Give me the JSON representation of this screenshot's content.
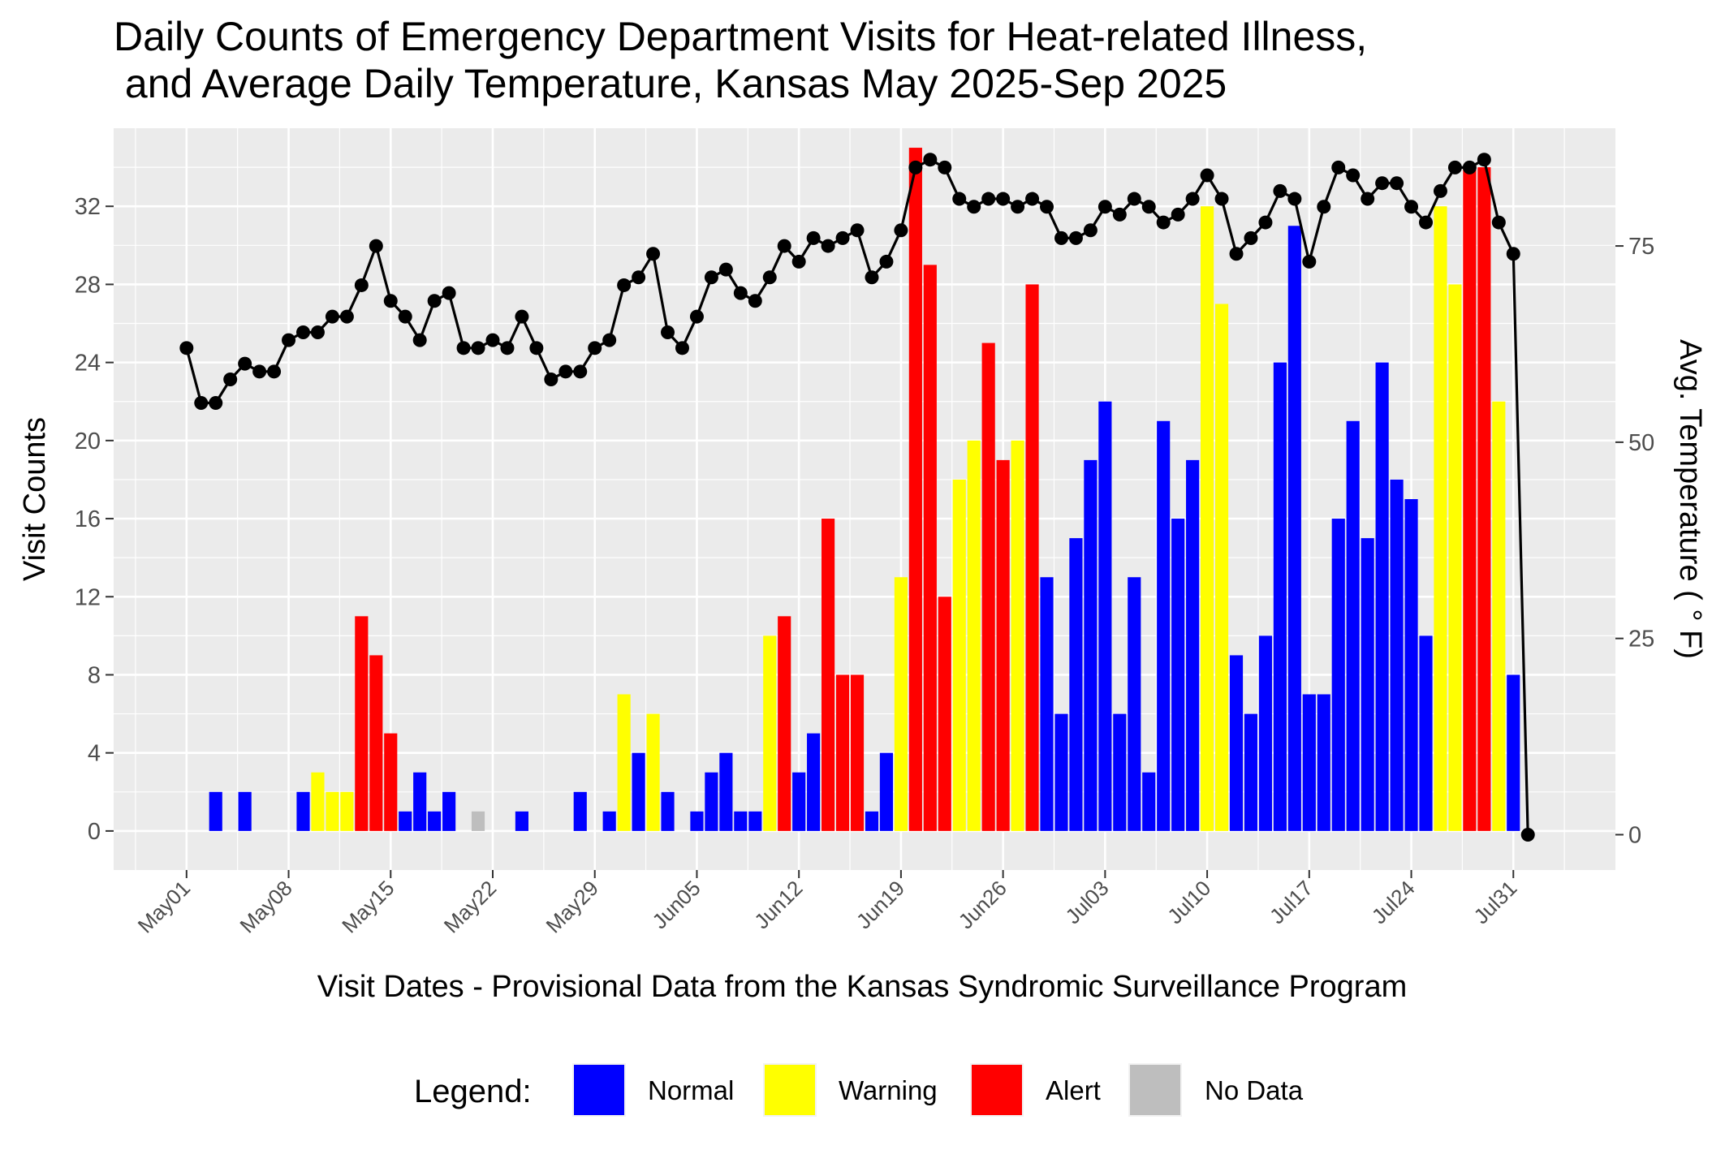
{
  "chart_data": {
    "type": "bar",
    "title": [
      "Daily Counts of Emergency Department Visits for Heat-related Illness,",
      " and Average Daily Temperature, Kansas May 2025-Sep 2025"
    ],
    "xlabel": "Visit Dates - Provisional Data from the Kansas Syndromic Surveillance Program",
    "ylabel": "Visit Counts",
    "y2label": "Avg. Temperature ( ° F)",
    "x_start": "2025-05-01",
    "x_range": [
      "2025-04-26",
      "2025-08-07"
    ],
    "x_ticks": [
      "May01",
      "May08",
      "May15",
      "May22",
      "May29",
      "Jun05",
      "Jun12",
      "Jun19",
      "Jun26",
      "Jul03",
      "Jul10",
      "Jul17",
      "Jul24",
      "Jul31"
    ],
    "ylim": [
      -2,
      36
    ],
    "y_ticks": [
      0,
      4,
      8,
      12,
      16,
      20,
      24,
      28,
      32
    ],
    "y2lim": [
      -4.5,
      90
    ],
    "y2_ticks": [
      0,
      25,
      50,
      75
    ],
    "grid": true,
    "legend_title": "Legend:",
    "legend_position": "bottom",
    "legend": [
      {
        "key": "N",
        "label": "Normal",
        "color": "#0000ff"
      },
      {
        "key": "W",
        "label": "Warning",
        "color": "#ffff00"
      },
      {
        "key": "A",
        "label": "Alert",
        "color": "#ff0000"
      },
      {
        "key": "X",
        "label": "No Data",
        "color": "#bebebe"
      }
    ],
    "bars": [
      {
        "date": "2025-05-03",
        "count": 2,
        "status": "N"
      },
      {
        "date": "2025-05-05",
        "count": 2,
        "status": "N"
      },
      {
        "date": "2025-05-09",
        "count": 2,
        "status": "N"
      },
      {
        "date": "2025-05-10",
        "count": 3,
        "status": "W"
      },
      {
        "date": "2025-05-11",
        "count": 2,
        "status": "W"
      },
      {
        "date": "2025-05-12",
        "count": 2,
        "status": "W"
      },
      {
        "date": "2025-05-13",
        "count": 11,
        "status": "A"
      },
      {
        "date": "2025-05-14",
        "count": 9,
        "status": "A"
      },
      {
        "date": "2025-05-15",
        "count": 5,
        "status": "A"
      },
      {
        "date": "2025-05-16",
        "count": 1,
        "status": "N"
      },
      {
        "date": "2025-05-17",
        "count": 3,
        "status": "N"
      },
      {
        "date": "2025-05-18",
        "count": 1,
        "status": "N"
      },
      {
        "date": "2025-05-19",
        "count": 2,
        "status": "N"
      },
      {
        "date": "2025-05-21",
        "count": 1,
        "status": "X"
      },
      {
        "date": "2025-05-24",
        "count": 1,
        "status": "N"
      },
      {
        "date": "2025-05-28",
        "count": 2,
        "status": "N"
      },
      {
        "date": "2025-05-30",
        "count": 1,
        "status": "N"
      },
      {
        "date": "2025-05-31",
        "count": 7,
        "status": "W"
      },
      {
        "date": "2025-06-01",
        "count": 4,
        "status": "N"
      },
      {
        "date": "2025-06-02",
        "count": 6,
        "status": "W"
      },
      {
        "date": "2025-06-03",
        "count": 2,
        "status": "N"
      },
      {
        "date": "2025-06-05",
        "count": 1,
        "status": "N"
      },
      {
        "date": "2025-06-06",
        "count": 3,
        "status": "N"
      },
      {
        "date": "2025-06-07",
        "count": 4,
        "status": "N"
      },
      {
        "date": "2025-06-08",
        "count": 1,
        "status": "N"
      },
      {
        "date": "2025-06-09",
        "count": 1,
        "status": "N"
      },
      {
        "date": "2025-06-10",
        "count": 10,
        "status": "W"
      },
      {
        "date": "2025-06-11",
        "count": 11,
        "status": "A"
      },
      {
        "date": "2025-06-12",
        "count": 3,
        "status": "N"
      },
      {
        "date": "2025-06-13",
        "count": 5,
        "status": "N"
      },
      {
        "date": "2025-06-14",
        "count": 16,
        "status": "A"
      },
      {
        "date": "2025-06-15",
        "count": 8,
        "status": "A"
      },
      {
        "date": "2025-06-16",
        "count": 8,
        "status": "A"
      },
      {
        "date": "2025-06-17",
        "count": 1,
        "status": "N"
      },
      {
        "date": "2025-06-18",
        "count": 4,
        "status": "N"
      },
      {
        "date": "2025-06-19",
        "count": 13,
        "status": "W"
      },
      {
        "date": "2025-06-20",
        "count": 35,
        "status": "A"
      },
      {
        "date": "2025-06-21",
        "count": 29,
        "status": "A"
      },
      {
        "date": "2025-06-22",
        "count": 12,
        "status": "A"
      },
      {
        "date": "2025-06-23",
        "count": 18,
        "status": "W"
      },
      {
        "date": "2025-06-24",
        "count": 20,
        "status": "W"
      },
      {
        "date": "2025-06-25",
        "count": 25,
        "status": "A"
      },
      {
        "date": "2025-06-26",
        "count": 19,
        "status": "A"
      },
      {
        "date": "2025-06-27",
        "count": 20,
        "status": "W"
      },
      {
        "date": "2025-06-28",
        "count": 28,
        "status": "A"
      },
      {
        "date": "2025-06-29",
        "count": 13,
        "status": "N"
      },
      {
        "date": "2025-06-30",
        "count": 6,
        "status": "N"
      },
      {
        "date": "2025-07-01",
        "count": 15,
        "status": "N"
      },
      {
        "date": "2025-07-02",
        "count": 19,
        "status": "N"
      },
      {
        "date": "2025-07-03",
        "count": 22,
        "status": "N"
      },
      {
        "date": "2025-07-04",
        "count": 6,
        "status": "N"
      },
      {
        "date": "2025-07-05",
        "count": 13,
        "status": "N"
      },
      {
        "date": "2025-07-06",
        "count": 3,
        "status": "N"
      },
      {
        "date": "2025-07-07",
        "count": 21,
        "status": "N"
      },
      {
        "date": "2025-07-08",
        "count": 16,
        "status": "N"
      },
      {
        "date": "2025-07-09",
        "count": 19,
        "status": "N"
      },
      {
        "date": "2025-07-10",
        "count": 32,
        "status": "W"
      },
      {
        "date": "2025-07-11",
        "count": 27,
        "status": "W"
      },
      {
        "date": "2025-07-12",
        "count": 9,
        "status": "N"
      },
      {
        "date": "2025-07-13",
        "count": 6,
        "status": "N"
      },
      {
        "date": "2025-07-14",
        "count": 10,
        "status": "N"
      },
      {
        "date": "2025-07-15",
        "count": 24,
        "status": "N"
      },
      {
        "date": "2025-07-16",
        "count": 31,
        "status": "N"
      },
      {
        "date": "2025-07-17",
        "count": 7,
        "status": "N"
      },
      {
        "date": "2025-07-18",
        "count": 7,
        "status": "N"
      },
      {
        "date": "2025-07-19",
        "count": 16,
        "status": "N"
      },
      {
        "date": "2025-07-20",
        "count": 21,
        "status": "N"
      },
      {
        "date": "2025-07-21",
        "count": 15,
        "status": "N"
      },
      {
        "date": "2025-07-22",
        "count": 24,
        "status": "N"
      },
      {
        "date": "2025-07-23",
        "count": 18,
        "status": "N"
      },
      {
        "date": "2025-07-24",
        "count": 17,
        "status": "N"
      },
      {
        "date": "2025-07-25",
        "count": 10,
        "status": "N"
      },
      {
        "date": "2025-07-26",
        "count": 32,
        "status": "W"
      },
      {
        "date": "2025-07-27",
        "count": 28,
        "status": "W"
      },
      {
        "date": "2025-07-28",
        "count": 34,
        "status": "A"
      },
      {
        "date": "2025-07-29",
        "count": 34,
        "status": "A"
      },
      {
        "date": "2025-07-30",
        "count": 22,
        "status": "W"
      },
      {
        "date": "2025-07-31",
        "count": 8,
        "status": "N"
      }
    ],
    "temperature": [
      {
        "date": "2025-05-01",
        "temp": 62
      },
      {
        "date": "2025-05-02",
        "temp": 55
      },
      {
        "date": "2025-05-03",
        "temp": 55
      },
      {
        "date": "2025-05-04",
        "temp": 58
      },
      {
        "date": "2025-05-05",
        "temp": 60
      },
      {
        "date": "2025-05-06",
        "temp": 59
      },
      {
        "date": "2025-05-07",
        "temp": 59
      },
      {
        "date": "2025-05-08",
        "temp": 63
      },
      {
        "date": "2025-05-09",
        "temp": 64
      },
      {
        "date": "2025-05-10",
        "temp": 64
      },
      {
        "date": "2025-05-11",
        "temp": 66
      },
      {
        "date": "2025-05-12",
        "temp": 66
      },
      {
        "date": "2025-05-13",
        "temp": 70
      },
      {
        "date": "2025-05-14",
        "temp": 75
      },
      {
        "date": "2025-05-15",
        "temp": 68
      },
      {
        "date": "2025-05-16",
        "temp": 66
      },
      {
        "date": "2025-05-17",
        "temp": 63
      },
      {
        "date": "2025-05-18",
        "temp": 68
      },
      {
        "date": "2025-05-19",
        "temp": 69
      },
      {
        "date": "2025-05-20",
        "temp": 62
      },
      {
        "date": "2025-05-21",
        "temp": 62
      },
      {
        "date": "2025-05-22",
        "temp": 63
      },
      {
        "date": "2025-05-23",
        "temp": 62
      },
      {
        "date": "2025-05-24",
        "temp": 66
      },
      {
        "date": "2025-05-25",
        "temp": 62
      },
      {
        "date": "2025-05-26",
        "temp": 58
      },
      {
        "date": "2025-05-27",
        "temp": 59
      },
      {
        "date": "2025-05-28",
        "temp": 59
      },
      {
        "date": "2025-05-29",
        "temp": 62
      },
      {
        "date": "2025-05-30",
        "temp": 63
      },
      {
        "date": "2025-05-31",
        "temp": 70
      },
      {
        "date": "2025-06-01",
        "temp": 71
      },
      {
        "date": "2025-06-02",
        "temp": 74
      },
      {
        "date": "2025-06-03",
        "temp": 64
      },
      {
        "date": "2025-06-04",
        "temp": 62
      },
      {
        "date": "2025-06-05",
        "temp": 66
      },
      {
        "date": "2025-06-06",
        "temp": 71
      },
      {
        "date": "2025-06-07",
        "temp": 72
      },
      {
        "date": "2025-06-08",
        "temp": 69
      },
      {
        "date": "2025-06-09",
        "temp": 68
      },
      {
        "date": "2025-06-10",
        "temp": 71
      },
      {
        "date": "2025-06-11",
        "temp": 75
      },
      {
        "date": "2025-06-12",
        "temp": 73
      },
      {
        "date": "2025-06-13",
        "temp": 76
      },
      {
        "date": "2025-06-14",
        "temp": 75
      },
      {
        "date": "2025-06-15",
        "temp": 76
      },
      {
        "date": "2025-06-16",
        "temp": 77
      },
      {
        "date": "2025-06-17",
        "temp": 71
      },
      {
        "date": "2025-06-18",
        "temp": 73
      },
      {
        "date": "2025-06-19",
        "temp": 77
      },
      {
        "date": "2025-06-20",
        "temp": 85
      },
      {
        "date": "2025-06-21",
        "temp": 86
      },
      {
        "date": "2025-06-22",
        "temp": 85
      },
      {
        "date": "2025-06-23",
        "temp": 81
      },
      {
        "date": "2025-06-24",
        "temp": 80
      },
      {
        "date": "2025-06-25",
        "temp": 81
      },
      {
        "date": "2025-06-26",
        "temp": 81
      },
      {
        "date": "2025-06-27",
        "temp": 80
      },
      {
        "date": "2025-06-28",
        "temp": 81
      },
      {
        "date": "2025-06-29",
        "temp": 80
      },
      {
        "date": "2025-06-30",
        "temp": 76
      },
      {
        "date": "2025-07-01",
        "temp": 76
      },
      {
        "date": "2025-07-02",
        "temp": 77
      },
      {
        "date": "2025-07-03",
        "temp": 80
      },
      {
        "date": "2025-07-04",
        "temp": 79
      },
      {
        "date": "2025-07-05",
        "temp": 81
      },
      {
        "date": "2025-07-06",
        "temp": 80
      },
      {
        "date": "2025-07-07",
        "temp": 78
      },
      {
        "date": "2025-07-08",
        "temp": 79
      },
      {
        "date": "2025-07-09",
        "temp": 81
      },
      {
        "date": "2025-07-10",
        "temp": 84
      },
      {
        "date": "2025-07-11",
        "temp": 81
      },
      {
        "date": "2025-07-12",
        "temp": 74
      },
      {
        "date": "2025-07-13",
        "temp": 76
      },
      {
        "date": "2025-07-14",
        "temp": 78
      },
      {
        "date": "2025-07-15",
        "temp": 82
      },
      {
        "date": "2025-07-16",
        "temp": 81
      },
      {
        "date": "2025-07-17",
        "temp": 73
      },
      {
        "date": "2025-07-18",
        "temp": 80
      },
      {
        "date": "2025-07-19",
        "temp": 85
      },
      {
        "date": "2025-07-20",
        "temp": 84
      },
      {
        "date": "2025-07-21",
        "temp": 81
      },
      {
        "date": "2025-07-22",
        "temp": 83
      },
      {
        "date": "2025-07-23",
        "temp": 83
      },
      {
        "date": "2025-07-24",
        "temp": 80
      },
      {
        "date": "2025-07-25",
        "temp": 78
      },
      {
        "date": "2025-07-26",
        "temp": 82
      },
      {
        "date": "2025-07-27",
        "temp": 85
      },
      {
        "date": "2025-07-28",
        "temp": 85
      },
      {
        "date": "2025-07-29",
        "temp": 86
      },
      {
        "date": "2025-07-30",
        "temp": 78
      },
      {
        "date": "2025-07-31",
        "temp": 74
      },
      {
        "date": "2025-08-01",
        "temp": 0
      }
    ]
  }
}
